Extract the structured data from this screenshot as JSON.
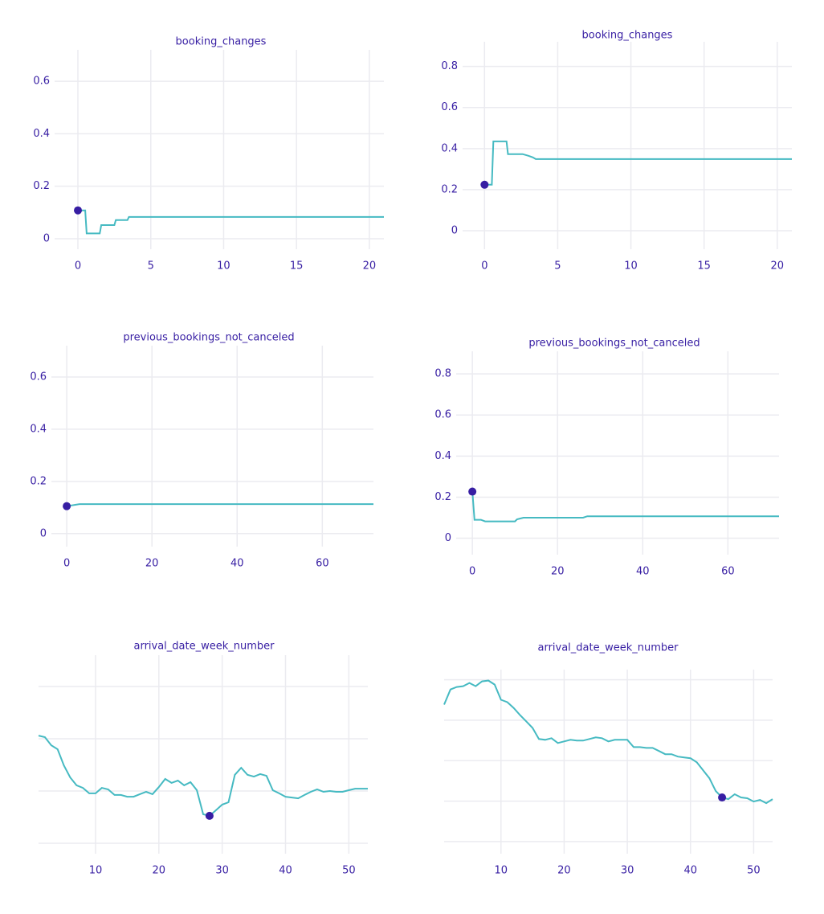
{
  "chart_data": [
    {
      "type": "line",
      "title": "booking_changes",
      "color": "#46bac2",
      "x": [
        0,
        0.5,
        0.6,
        1.5,
        1.6,
        2.5,
        2.6,
        3.4,
        3.5,
        21
      ],
      "values": [
        0.108,
        0.108,
        0.02,
        0.02,
        0.052,
        0.052,
        0.071,
        0.071,
        0.083,
        0.083
      ],
      "marker": {
        "x": 0,
        "y": 0.108,
        "color": "#371ea3"
      },
      "xlim": [
        -1.6,
        21
      ],
      "ylim": [
        -0.04,
        0.72
      ],
      "xticks": [
        0,
        5,
        10,
        15,
        20
      ],
      "yticks": [
        0,
        0.2,
        0.4,
        0.6
      ],
      "grid": true
    },
    {
      "type": "line",
      "title": "booking_changes",
      "color": "#46bac2",
      "x": [
        0,
        0.5,
        0.6,
        1.5,
        1.6,
        2.6,
        3,
        3.3,
        3.5,
        21
      ],
      "values": [
        0.224,
        0.224,
        0.435,
        0.435,
        0.373,
        0.373,
        0.365,
        0.357,
        0.349,
        0.349
      ],
      "marker": {
        "x": 0,
        "y": 0.224,
        "color": "#371ea3"
      },
      "xlim": [
        -1.5,
        21
      ],
      "ylim": [
        -0.09,
        0.92
      ],
      "xticks": [
        0,
        5,
        10,
        15,
        20
      ],
      "yticks": [
        0,
        0.2,
        0.4,
        0.6,
        0.8
      ],
      "grid": true
    },
    {
      "type": "line",
      "title": "previous_bookings_not_canceled",
      "color": "#46bac2",
      "x": [
        0,
        3,
        72
      ],
      "values": [
        0.105,
        0.113,
        0.113
      ],
      "marker": {
        "x": 0,
        "y": 0.105,
        "color": "#371ea3"
      },
      "xlim": [
        -3.6,
        72
      ],
      "ylim": [
        -0.05,
        0.72
      ],
      "xticks": [
        0,
        20,
        40,
        60
      ],
      "yticks": [
        0,
        0.2,
        0.4,
        0.6
      ],
      "grid": true
    },
    {
      "type": "line",
      "title": "previous_bookings_not_canceled",
      "color": "#46bac2",
      "x": [
        0,
        0.5,
        2,
        3,
        10,
        10.5,
        12,
        26,
        27,
        72
      ],
      "values": [
        0.227,
        0.09,
        0.09,
        0.082,
        0.082,
        0.092,
        0.1,
        0.1,
        0.107,
        0.107
      ],
      "marker": {
        "x": 0,
        "y": 0.227,
        "color": "#371ea3"
      },
      "xlim": [
        -3.8,
        72
      ],
      "ylim": [
        -0.08,
        0.91
      ],
      "xticks": [
        0,
        20,
        40,
        60
      ],
      "yticks": [
        0,
        0.2,
        0.4,
        0.6,
        0.8
      ],
      "grid": true
    },
    {
      "type": "line",
      "title": "arrival_date_week_number",
      "color": "#46bac2",
      "x": [
        1,
        2,
        3,
        4,
        5,
        6,
        7,
        8,
        9,
        10,
        11,
        12,
        13,
        14,
        15,
        16,
        17,
        18,
        19,
        20,
        21,
        22,
        23,
        24,
        25,
        26,
        27,
        28,
        29,
        30,
        31,
        32,
        33,
        34,
        35,
        36,
        37,
        38,
        39,
        40,
        41,
        42,
        43,
        44,
        45,
        46,
        47,
        48,
        49,
        50,
        51,
        52,
        53
      ],
      "values": [
        0.412,
        0.406,
        0.375,
        0.36,
        0.298,
        0.252,
        0.222,
        0.212,
        0.191,
        0.191,
        0.212,
        0.206,
        0.185,
        0.185,
        0.178,
        0.178,
        0.188,
        0.197,
        0.188,
        0.215,
        0.246,
        0.231,
        0.24,
        0.222,
        0.234,
        0.203,
        0.111,
        0.105,
        0.126,
        0.148,
        0.157,
        0.262,
        0.289,
        0.262,
        0.255,
        0.265,
        0.258,
        0.203,
        0.191,
        0.178,
        0.175,
        0.172,
        0.185,
        0.197,
        0.206,
        0.197,
        0.2,
        0.197,
        0.197,
        0.203,
        0.209,
        0.209,
        0.209
      ],
      "marker": {
        "x": 28,
        "y": 0.105,
        "color": "#371ea3"
      },
      "xlim": [
        1,
        53
      ],
      "ylim": [
        -0.04,
        0.72
      ],
      "xticks": [
        10,
        20,
        30,
        40,
        50
      ],
      "ygrid": [
        0,
        0.2,
        0.4,
        0.6
      ],
      "grid": true
    },
    {
      "type": "line",
      "title": "arrival_date_week_number",
      "color": "#46bac2",
      "x": [
        1,
        2,
        3,
        4,
        5,
        6,
        7,
        8,
        9,
        10,
        11,
        12,
        13,
        14,
        15,
        16,
        17,
        18,
        19,
        20,
        21,
        22,
        23,
        24,
        25,
        26,
        27,
        28,
        29,
        30,
        31,
        32,
        33,
        34,
        35,
        36,
        37,
        38,
        39,
        40,
        41,
        42,
        43,
        44,
        45,
        46,
        47,
        48,
        49,
        50,
        51,
        52,
        53
      ],
      "values": [
        0.677,
        0.752,
        0.764,
        0.768,
        0.784,
        0.768,
        0.792,
        0.796,
        0.776,
        0.701,
        0.689,
        0.661,
        0.626,
        0.594,
        0.562,
        0.507,
        0.503,
        0.511,
        0.487,
        0.495,
        0.503,
        0.499,
        0.499,
        0.507,
        0.515,
        0.511,
        0.495,
        0.503,
        0.503,
        0.503,
        0.467,
        0.467,
        0.463,
        0.463,
        0.448,
        0.432,
        0.432,
        0.42,
        0.416,
        0.412,
        0.392,
        0.352,
        0.313,
        0.25,
        0.218,
        0.21,
        0.234,
        0.218,
        0.214,
        0.198,
        0.206,
        0.19,
        0.21
      ],
      "marker": {
        "x": 45,
        "y": 0.218,
        "color": "#371ea3"
      },
      "xlim": [
        1,
        53
      ],
      "ylim": [
        -0.06,
        0.85
      ],
      "xticks": [
        10,
        20,
        30,
        40,
        50
      ],
      "ygrid": [
        0,
        0.2,
        0.4,
        0.6,
        0.8
      ],
      "grid": true
    }
  ]
}
